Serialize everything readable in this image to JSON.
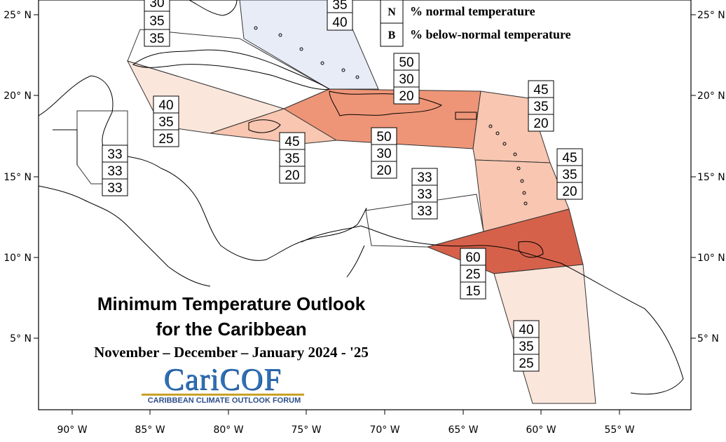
{
  "title": {
    "line1": "Minimum Temperature Outlook",
    "line2": "for the Caribbean",
    "line3": "November – December – January 2024 - '25"
  },
  "logo": {
    "name": "CariCOF",
    "subtitle": "CARIBBEAN CLIMATE OUTLOOK FORUM"
  },
  "legend": {
    "items": [
      {
        "key": "N",
        "label": "% normal temperature"
      },
      {
        "key": "B",
        "label": "% below-normal temperature"
      }
    ]
  },
  "axes": {
    "lon_labels": [
      "90° W",
      "85° W",
      "80° W",
      "75° W",
      "70° W",
      "65° W",
      "60° W",
      "55° W"
    ],
    "lat_labels": [
      "25° N",
      "20° N",
      "15° N",
      "10° N",
      "5° N"
    ]
  },
  "colors": {
    "above_50": "#ee9577",
    "above_60": "#d6614a",
    "above_45": "#f8c6b1",
    "above_40": "#fbe6dc",
    "normal_blue": "#e8ecf7"
  },
  "regions": [
    {
      "id": "bahamas-left",
      "values": [
        "30",
        "35",
        "35"
      ]
    },
    {
      "id": "bahamas-right",
      "values": [
        "35",
        "40"
      ]
    },
    {
      "id": "hispaniola-north",
      "values": [
        "50",
        "30",
        "20"
      ]
    },
    {
      "id": "leeward",
      "values": [
        "45",
        "35",
        "20"
      ]
    },
    {
      "id": "cuba-south",
      "values": [
        "40",
        "35",
        "25"
      ]
    },
    {
      "id": "jamaica",
      "values": [
        "45",
        "35",
        "20"
      ]
    },
    {
      "id": "hispaniola-south",
      "values": [
        "50",
        "30",
        "20"
      ]
    },
    {
      "id": "windward",
      "values": [
        "45",
        "35",
        "20"
      ]
    },
    {
      "id": "belize",
      "values": [
        "33",
        "33",
        "33"
      ]
    },
    {
      "id": "abc-islands",
      "values": [
        "33",
        "33",
        "33"
      ]
    },
    {
      "id": "trinidad",
      "values": [
        "60",
        "25",
        "15"
      ]
    },
    {
      "id": "guianas",
      "values": [
        "40",
        "35",
        "25"
      ]
    }
  ]
}
